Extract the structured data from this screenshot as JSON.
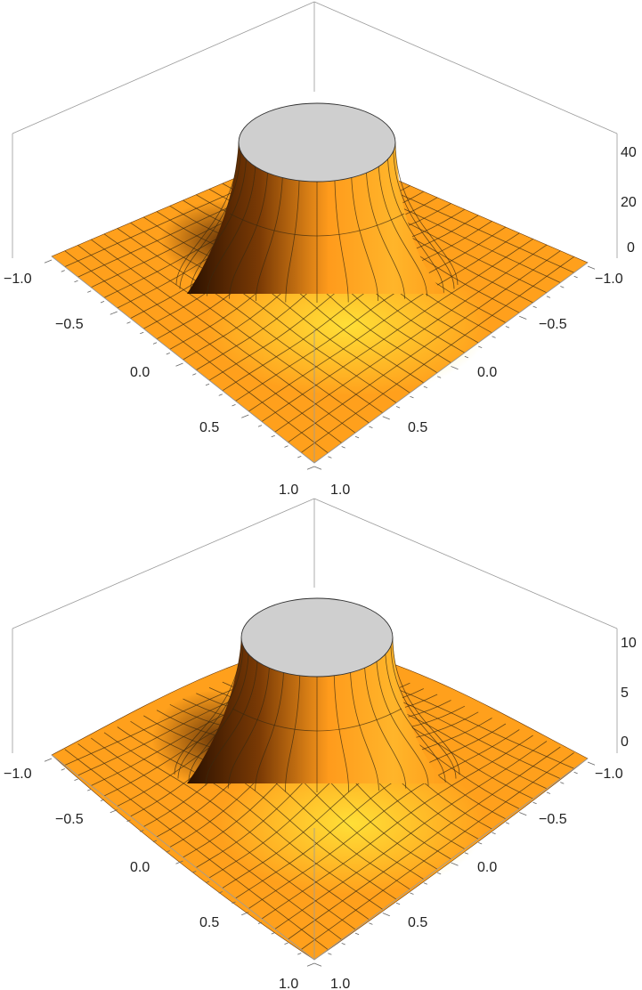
{
  "chart_data": [
    {
      "type": "surface3d",
      "description_axes": {
        "x_ticks": [
          "−1.0",
          "−0.5",
          "0.0",
          "0.5",
          "1.0"
        ],
        "y_ticks": [
          "−1.0",
          "−0.5",
          "0.0",
          "0.5",
          "1.0"
        ],
        "z_ticks": [
          "0",
          "20",
          "40"
        ]
      },
      "xlim": [
        -1,
        1
      ],
      "ylim": [
        -1,
        1
      ],
      "zlim": [
        -5,
        50
      ],
      "peak_clipped": true,
      "colors": {
        "surface_light": "#fff04a",
        "surface_mid": "#ffa31f",
        "surface_dark": "#3d1a00",
        "cap": "#cfcfcf"
      }
    },
    {
      "type": "surface3d",
      "description_axes": {
        "x_ticks": [
          "−1.0",
          "−0.5",
          "0.0",
          "0.5",
          "1.0"
        ],
        "y_ticks": [
          "−1.0",
          "−0.5",
          "0.0",
          "0.5",
          "1.0"
        ],
        "z_ticks": [
          "0",
          "5",
          "10"
        ]
      },
      "xlim": [
        -1,
        1
      ],
      "ylim": [
        -1,
        1
      ],
      "zlim": [
        -1,
        11
      ],
      "peak_clipped": true,
      "colors": {
        "surface_light": "#fff04a",
        "surface_mid": "#ffa31f",
        "surface_dark": "#3d1a00",
        "cap": "#cfcfcf"
      }
    }
  ]
}
